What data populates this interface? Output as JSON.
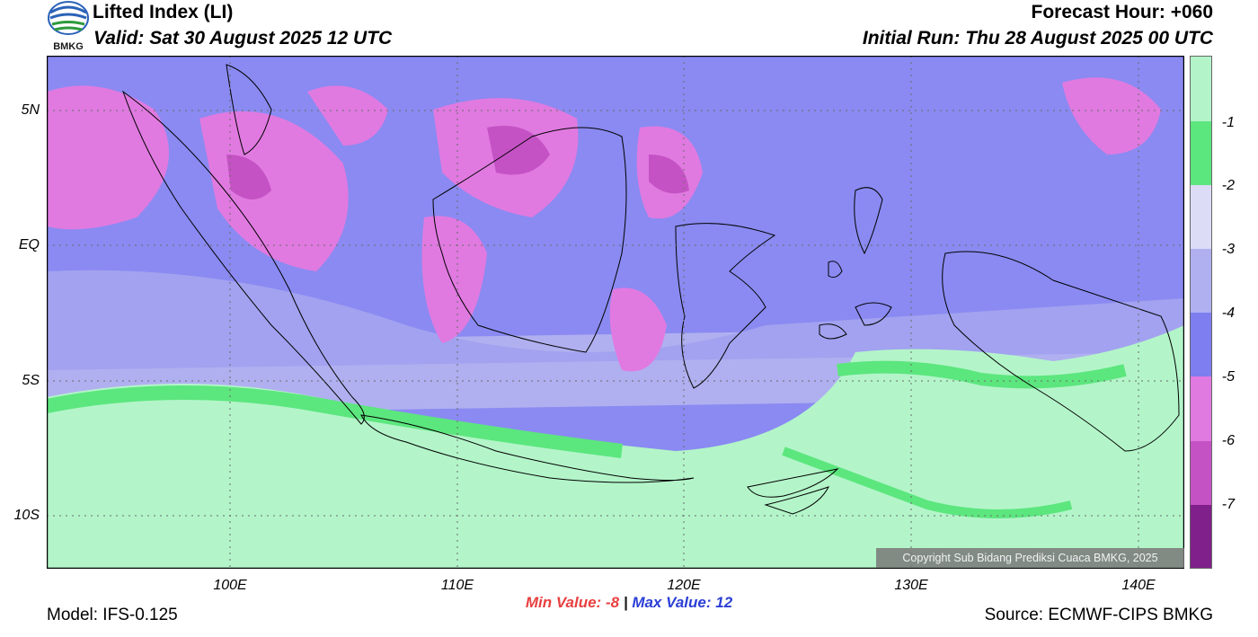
{
  "header": {
    "title": "Lifted Index (LI)",
    "valid": "Valid: Sat 30 August 2025 12 UTC",
    "forecast_hour": "Forecast Hour: +060",
    "initial_run": "Initial Run: Thu 28 August 2025 00 UTC",
    "logo_text": "BMKG"
  },
  "axes": {
    "lat_labels": [
      "5N",
      "EQ",
      "5S",
      "10S"
    ],
    "lon_labels": [
      "100E",
      "110E",
      "120E",
      "130E",
      "140E"
    ]
  },
  "legend": {
    "labels": [
      "-1",
      "-2",
      "-3",
      "-4",
      "-5",
      "-6",
      "-7"
    ],
    "colors": [
      "#b3f5c9",
      "#5ce67e",
      "#dcdcf7",
      "#b0b0f0",
      "#7e7ef0",
      "#e07ae0",
      "#c552c5",
      "#a030a0",
      "#80208a"
    ]
  },
  "stats": {
    "min_label": "Min Value:",
    "min_value": "-8",
    "separator": "|",
    "max_label": "Max Value:",
    "max_value": "12"
  },
  "footer": {
    "model": "Model: IFS-0.125",
    "source": "Source: ECMWF-CIPS BMKG",
    "copyright": "Copyright Sub Bidang Prediksi Cuaca BMKG, 2025"
  }
}
